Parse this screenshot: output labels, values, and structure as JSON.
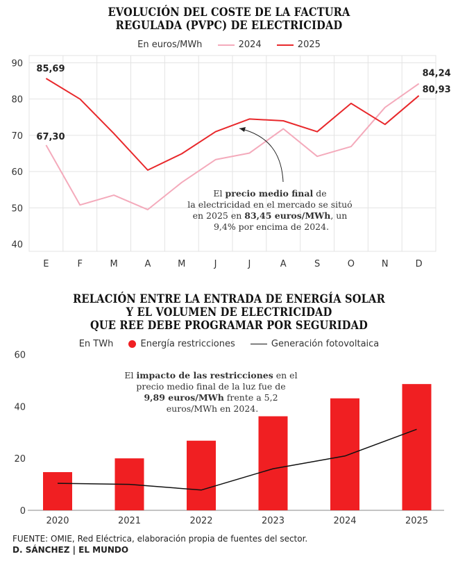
{
  "colors": {
    "red": "#e8282b",
    "pink": "#f4aabb",
    "grid": "#e3e3e3",
    "black": "#111111",
    "bar": "#f01f22"
  },
  "chart1": {
    "title_line1": "EVOLUCIÓN DEL COSTE DE LA FACTURA",
    "title_line2": "REGULADA (PVPC) DE ELECTRICIDAD",
    "unit": "En euros/MWh",
    "legend_2024": "2024",
    "legend_2025": "2025",
    "annotation": {
      "l1_a": "El ",
      "l1_b": "precio medio final",
      "l1_c": " de",
      "l2": "la electricidad en el mercado se situó",
      "l3_a": "en 2025 en ",
      "l3_b": "83,45 euros/MWh",
      "l3_c": ", un",
      "l4": "9,4% por encima de 2024."
    }
  },
  "chart2": {
    "title_line1": "RELACIÓN ENTRE LA ENTRADA DE ENERGÍA SOLAR",
    "title_line2": "Y EL VOLUMEN DE ELECTRICIDAD",
    "title_line3": "QUE REE DEBE PROGRAMAR POR SEGURIDAD",
    "unit": "En TWh",
    "legend_bar": "Energía restricciones",
    "legend_line": "Generación fotovoltaica",
    "annotation": {
      "l1_a": "El ",
      "l1_b": "impacto de las restricciones",
      "l1_c": " en el",
      "l2": "precio medio final de la luz fue de",
      "l3_a": "9,89 euros/MWh",
      "l3_b": " frente a 5,2",
      "l4": "euros/MWh en 2024."
    }
  },
  "footer": {
    "source": "FUENTE: OMIE, Red Eléctrica, elaboración propia de fuentes del sector.",
    "credit": "D. SÁNCHEZ | EL MUNDO"
  },
  "chart_data": [
    {
      "type": "line",
      "title": "EVOLUCIÓN DEL COSTE DE LA FACTURA REGULADA (PVPC) DE ELECTRICIDAD",
      "ylabel": "En euros/MWh",
      "categories": [
        "E",
        "F",
        "M",
        "A",
        "M",
        "J",
        "J",
        "A",
        "S",
        "O",
        "N",
        "D"
      ],
      "ylim": [
        38,
        92
      ],
      "yticks": [
        40,
        50,
        60,
        70,
        80,
        90
      ],
      "grid": true,
      "legend": "top",
      "series": [
        {
          "name": "2024",
          "values": [
            67.3,
            50.8,
            53.5,
            49.5,
            57.0,
            63.3,
            65.1,
            71.8,
            64.2,
            66.9,
            77.7,
            84.24
          ]
        },
        {
          "name": "2025",
          "values": [
            85.69,
            80.0,
            70.5,
            60.4,
            64.9,
            71.0,
            74.5,
            74.0,
            71.0,
            78.8,
            73.0,
            80.93
          ]
        }
      ],
      "data_labels": [
        "85,69",
        "67,30",
        "84,24",
        "80,93"
      ]
    },
    {
      "type": "bar",
      "title": "RELACIÓN ENTRE LA ENTRADA DE ENERGÍA SOLAR Y EL VOLUMEN DE ELECTRICIDAD QUE REE DEBE PROGRAMAR POR SEGURIDAD",
      "ylabel": "En TWh",
      "categories": [
        "2020",
        "2021",
        "2022",
        "2023",
        "2024",
        "2025"
      ],
      "ylim": [
        0,
        62
      ],
      "yticks": [
        0,
        20,
        40,
        60
      ],
      "grid": false,
      "legend": "top",
      "series": [
        {
          "name": "Energía restricciones",
          "values": [
            14.7,
            20.0,
            26.8,
            36.2,
            43.1,
            48.6
          ]
        },
        {
          "name": "Generación fotovoltaica",
          "values": [
            10.4,
            10.0,
            7.8,
            16.0,
            20.9,
            31.2
          ]
        }
      ]
    }
  ]
}
